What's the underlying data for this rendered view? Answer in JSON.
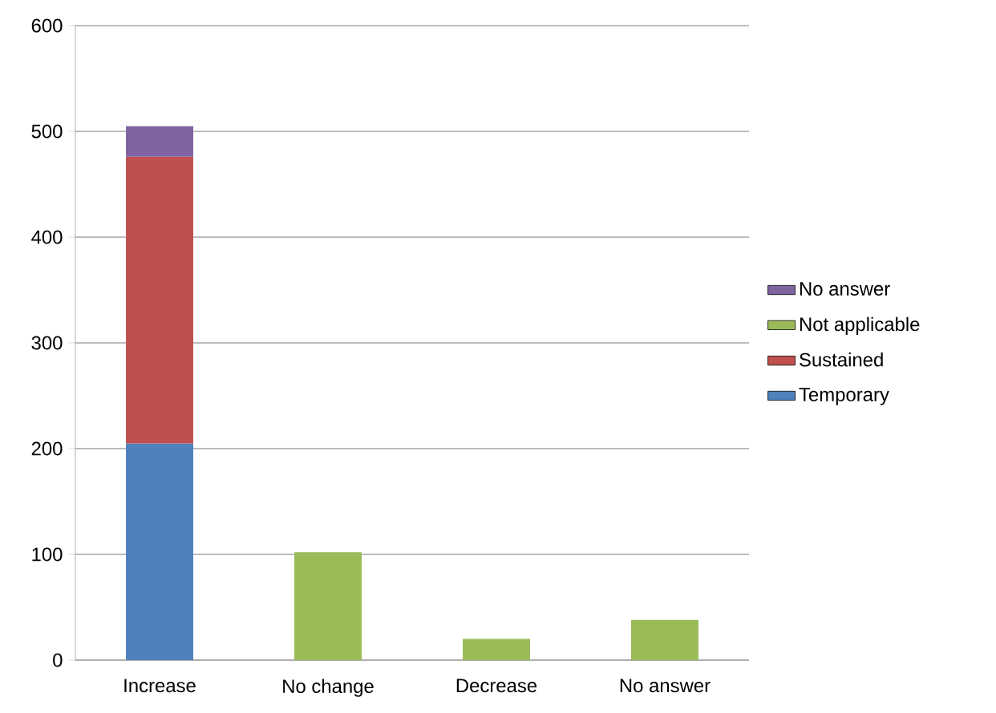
{
  "chart_data": {
    "type": "bar",
    "stacked": true,
    "categories": [
      "Increase",
      "No change",
      "Decrease",
      "No answer"
    ],
    "series": [
      {
        "name": "Temporary",
        "color": "#4f81bd",
        "values": [
          205,
          null,
          null,
          null
        ]
      },
      {
        "name": "Sustained",
        "color": "#c0504d",
        "values": [
          271,
          null,
          null,
          null
        ]
      },
      {
        "name": "Not applicable",
        "color": "#9bbb59",
        "values": [
          null,
          102,
          20,
          38
        ]
      },
      {
        "name": "No answer",
        "color": "#8064a2",
        "values": [
          29,
          null,
          null,
          null
        ]
      }
    ],
    "ylim": [
      0,
      600
    ],
    "yticks": [
      0,
      100,
      200,
      300,
      400,
      500,
      600
    ],
    "grid": "y",
    "legend": "right"
  }
}
